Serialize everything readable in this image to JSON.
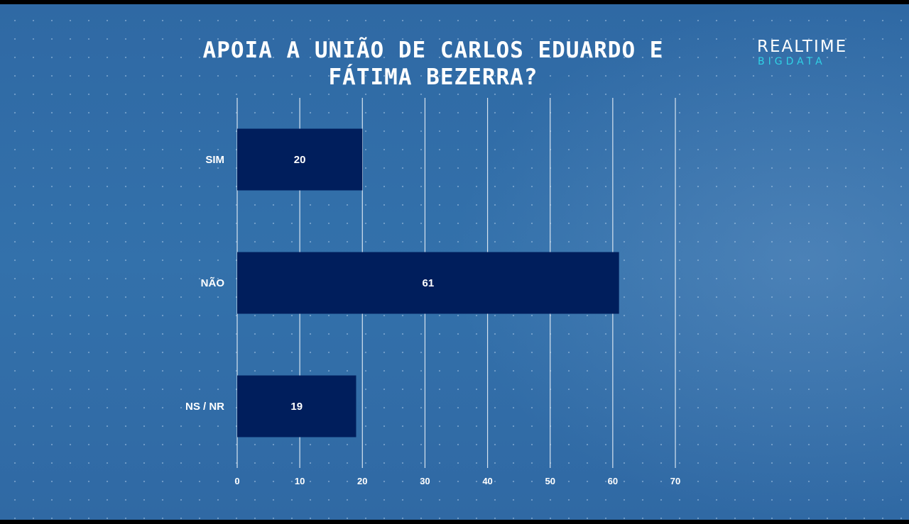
{
  "brand": {
    "main": "REALTIME",
    "sub": "BIGDATA"
  },
  "colors": {
    "background": "#3371ab",
    "bar": "#001e5c",
    "text": "#ffffff",
    "gridline": "#d8e4f0",
    "logo_accent": "#2fd2e6"
  },
  "chart_data": {
    "type": "bar",
    "orientation": "horizontal",
    "title": "APOIA A UNIÃO DE CARLOS EDUARDO E FÁTIMA BEZERRA?",
    "categories": [
      "SIM",
      "NÃO",
      "NS / NR"
    ],
    "values": [
      20,
      61,
      19
    ],
    "xlim": [
      0,
      70
    ],
    "xticks": [
      0,
      10,
      20,
      30,
      40,
      50,
      60,
      70
    ],
    "grid": true,
    "legend": "none"
  }
}
